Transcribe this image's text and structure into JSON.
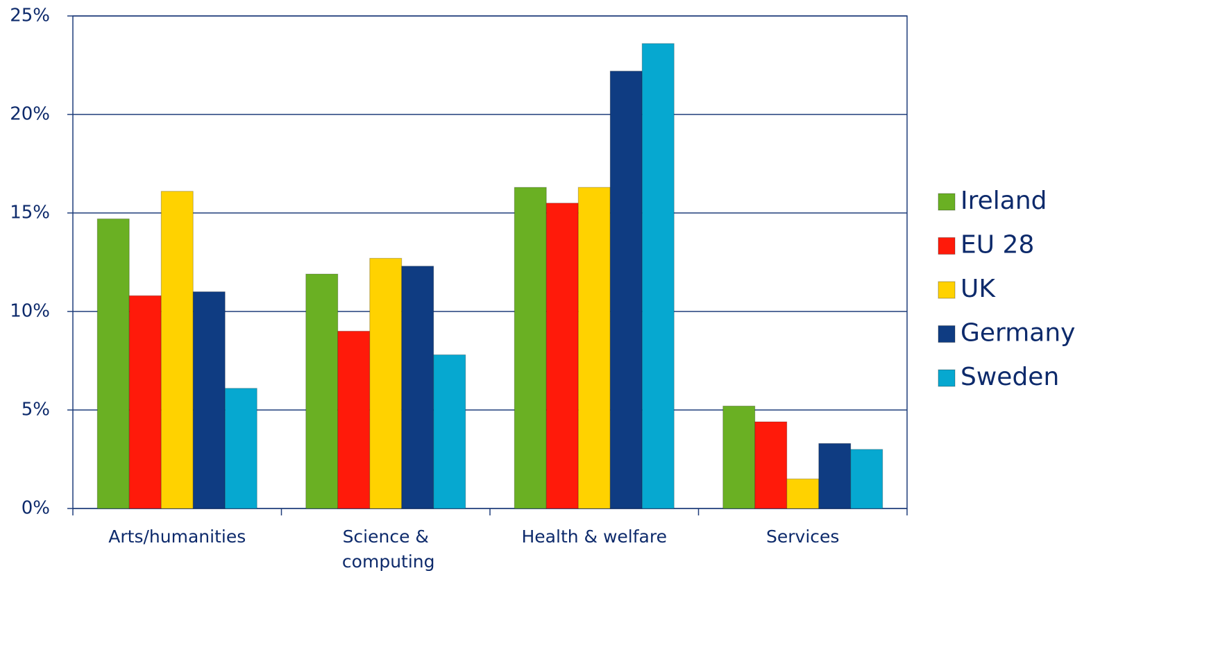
{
  "chart_data": {
    "type": "bar",
    "categories": [
      "Arts/humanities",
      "Science & computing",
      "Health & welfare",
      "Services"
    ],
    "series": [
      {
        "name": "Ireland",
        "color": "#6ab023",
        "values": [
          14.7,
          11.9,
          16.3,
          5.2
        ]
      },
      {
        "name": "EU 28",
        "color": "#ff1a0a",
        "values": [
          10.8,
          9.0,
          15.5,
          4.4
        ]
      },
      {
        "name": "UK",
        "color": "#ffd200",
        "values": [
          16.1,
          12.7,
          16.3,
          1.5
        ]
      },
      {
        "name": "Germany",
        "color": "#0f3c82",
        "values": [
          11.0,
          12.3,
          22.2,
          3.3
        ]
      },
      {
        "name": "Sweden",
        "color": "#06a8d0",
        "values": [
          6.1,
          7.8,
          23.6,
          3.0
        ]
      }
    ],
    "ylim": [
      0,
      25
    ],
    "yticks": [
      {
        "value": 0,
        "label": "0%"
      },
      {
        "value": 5,
        "label": "5%"
      },
      {
        "value": 10,
        "label": "10%"
      },
      {
        "value": 15,
        "label": "15%"
      },
      {
        "value": 20,
        "label": "20%"
      },
      {
        "value": 25,
        "label": "25%"
      }
    ],
    "grid": true,
    "legend": "right"
  }
}
